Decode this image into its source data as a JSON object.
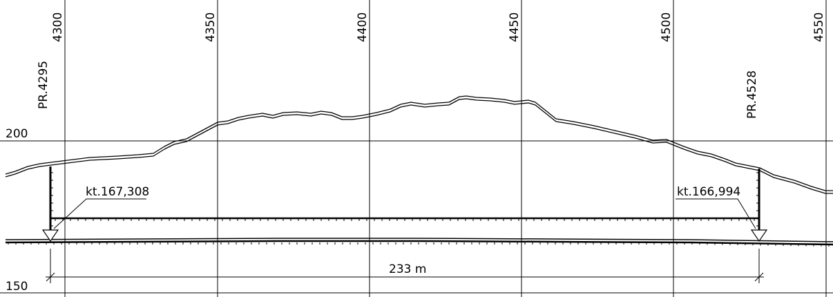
{
  "chainage_labels": [
    "4300",
    "4350",
    "4400",
    "4450",
    "4500",
    "4550"
  ],
  "elevation_labels": {
    "upper": "200",
    "lower": "150"
  },
  "profile_markers": {
    "start": {
      "label": "PR.4295",
      "level": "kt.167,308"
    },
    "end": {
      "label": "PR.4528",
      "level": "kt.166,994"
    }
  },
  "span_label": "233 m"
}
